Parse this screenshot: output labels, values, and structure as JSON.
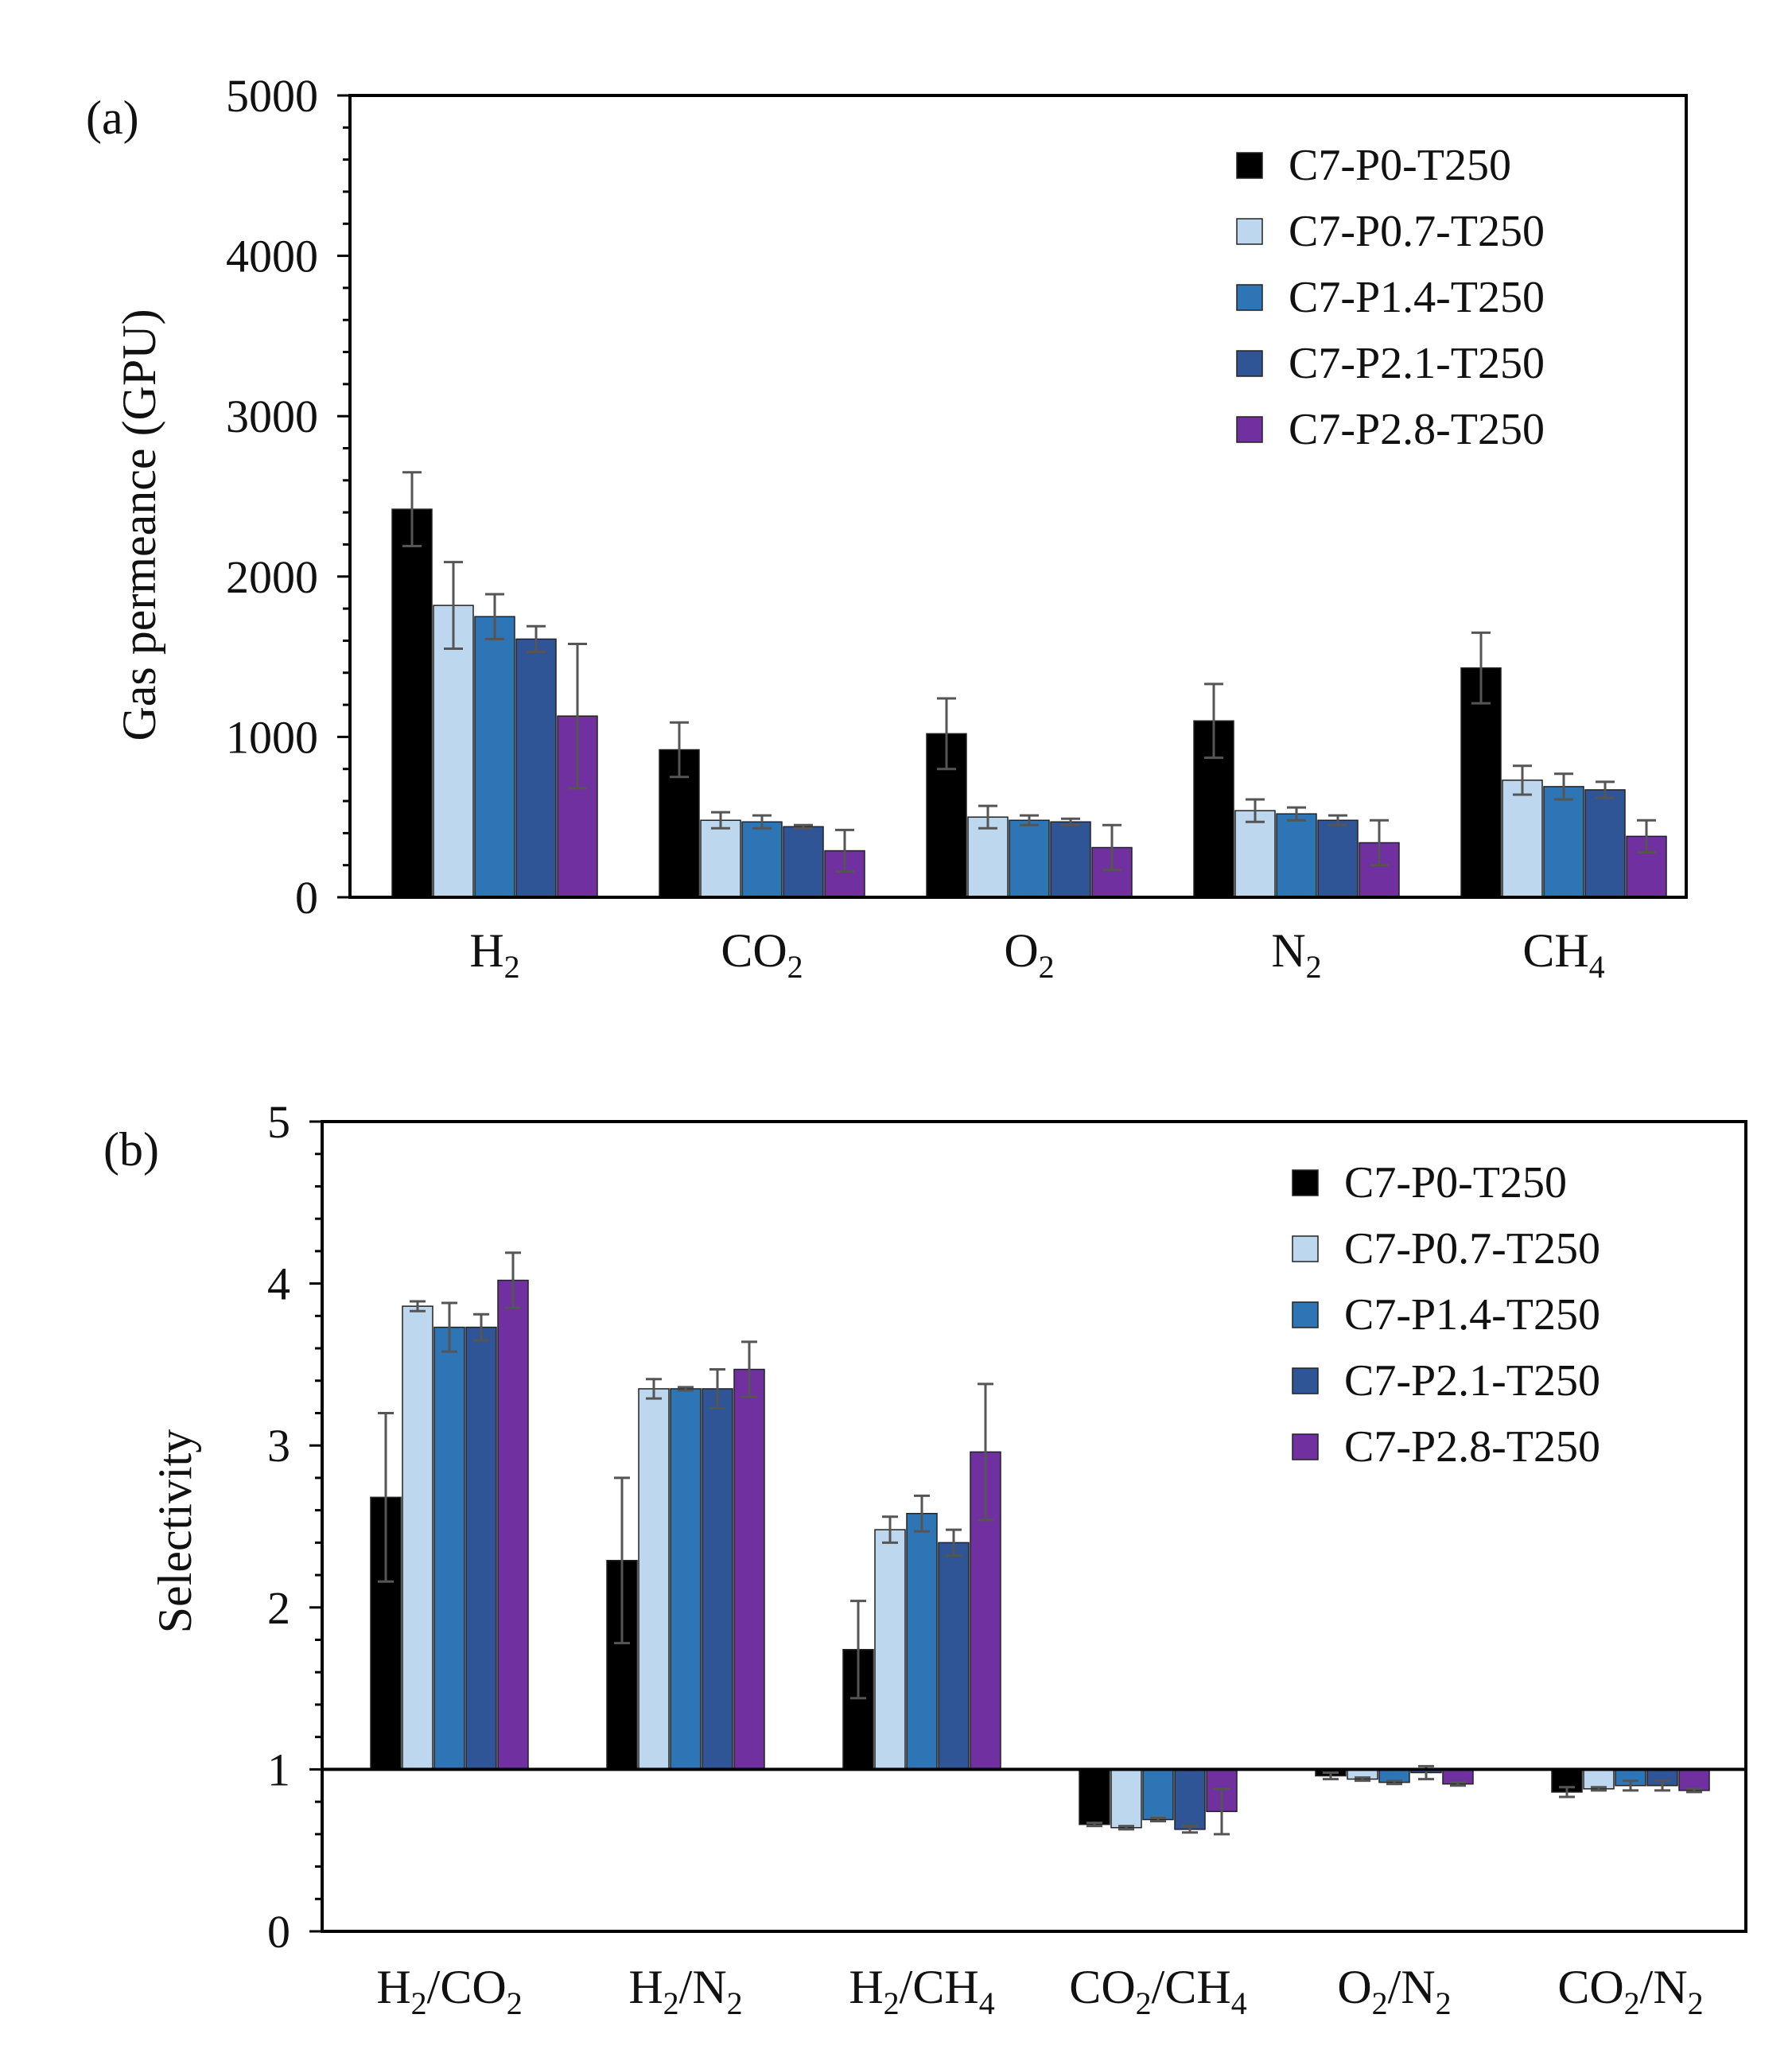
{
  "colors": {
    "C7-P0-T250": "#000000",
    "C7-P0.7-T250": "#bdd7ee",
    "C7-P1.4-T250": "#2e75b6",
    "C7-P2.1-T250": "#2f5597",
    "C7-P2.8-T250": "#7030a0",
    "errorbar": "#555555",
    "axis": "#000000"
  },
  "chart_data": [
    {
      "panel": "(a)",
      "type": "bar",
      "ylabel": "Gas permeance (GPU)",
      "ylim": [
        0,
        5000
      ],
      "yticks": [
        "0",
        "1000",
        "2000",
        "3000",
        "4000",
        "5000"
      ],
      "categories": [
        {
          "main": "H",
          "sub": "2",
          "tail": ""
        },
        {
          "main": "CO",
          "sub": "2",
          "tail": ""
        },
        {
          "main": "O",
          "sub": "2",
          "tail": ""
        },
        {
          "main": "N",
          "sub": "2",
          "tail": ""
        },
        {
          "main": "CH",
          "sub": "4",
          "tail": ""
        }
      ],
      "legend": [
        "C7-P0-T250",
        "C7-P0.7-T250",
        "C7-P1.4-T250",
        "C7-P2.1-T250",
        "C7-P2.8-T250"
      ],
      "legend_position": "top-right",
      "series": [
        {
          "name": "C7-P0-T250",
          "values": [
            2420,
            920,
            1020,
            1100,
            1430
          ],
          "errors": [
            230,
            170,
            220,
            230,
            220
          ]
        },
        {
          "name": "C7-P0.7-T250",
          "values": [
            1820,
            480,
            500,
            540,
            730
          ],
          "errors": [
            270,
            50,
            70,
            70,
            90
          ]
        },
        {
          "name": "C7-P1.4-T250",
          "values": [
            1750,
            470,
            480,
            520,
            690
          ],
          "errors": [
            140,
            40,
            30,
            40,
            80
          ]
        },
        {
          "name": "C7-P2.1-T250",
          "values": [
            1610,
            440,
            470,
            480,
            670
          ],
          "errors": [
            80,
            10,
            20,
            30,
            50
          ]
        },
        {
          "name": "C7-P2.8-T250",
          "values": [
            1130,
            290,
            310,
            340,
            380
          ],
          "errors": [
            450,
            130,
            140,
            140,
            100
          ]
        }
      ]
    },
    {
      "panel": "(b)",
      "type": "bar",
      "ylabel": "Selectivity",
      "ylim": [
        0,
        5
      ],
      "baseline": 1,
      "yticks": [
        "0",
        "1",
        "2",
        "3",
        "4",
        "5"
      ],
      "categories": [
        {
          "main": "H",
          "sub": "2",
          "tail": "/CO",
          "sub2": "2"
        },
        {
          "main": "H",
          "sub": "2",
          "tail": "/N",
          "sub2": "2"
        },
        {
          "main": "H",
          "sub": "2",
          "tail": "/CH",
          "sub2": "4"
        },
        {
          "main": "CO",
          "sub": "2",
          "tail": "/CH",
          "sub2": "4"
        },
        {
          "main": "O",
          "sub": "2",
          "tail": "/N",
          "sub2": "2"
        },
        {
          "main": "CO",
          "sub": "2",
          "tail": "/N",
          "sub2": "2"
        }
      ],
      "legend": [
        "C7-P0-T250",
        "C7-P0.7-T250",
        "C7-P1.4-T250",
        "C7-P2.1-T250",
        "C7-P2.8-T250"
      ],
      "legend_position": "top-right",
      "series": [
        {
          "name": "C7-P0-T250",
          "values": [
            2.68,
            2.29,
            1.74,
            0.66,
            0.96,
            0.86
          ],
          "errors": [
            0.52,
            0.51,
            0.3,
            0.01,
            0.02,
            0.03
          ]
        },
        {
          "name": "C7-P0.7-T250",
          "values": [
            3.86,
            3.35,
            2.48,
            0.64,
            0.94,
            0.88
          ],
          "errors": [
            0.03,
            0.06,
            0.08,
            0.01,
            0.01,
            0.01
          ]
        },
        {
          "name": "C7-P1.4-T250",
          "values": [
            3.73,
            3.35,
            2.58,
            0.69,
            0.92,
            0.9
          ],
          "errors": [
            0.15,
            0.01,
            0.11,
            0.01,
            0.01,
            0.03
          ]
        },
        {
          "name": "C7-P2.1-T250",
          "values": [
            3.73,
            3.35,
            2.4,
            0.63,
            0.98,
            0.9
          ],
          "errors": [
            0.08,
            0.12,
            0.08,
            0.02,
            0.04,
            0.03
          ]
        },
        {
          "name": "C7-P2.8-T250",
          "values": [
            4.02,
            3.47,
            2.96,
            0.74,
            0.91,
            0.87
          ],
          "errors": [
            0.17,
            0.17,
            0.42,
            0.14,
            0.01,
            0.01
          ]
        }
      ]
    }
  ]
}
